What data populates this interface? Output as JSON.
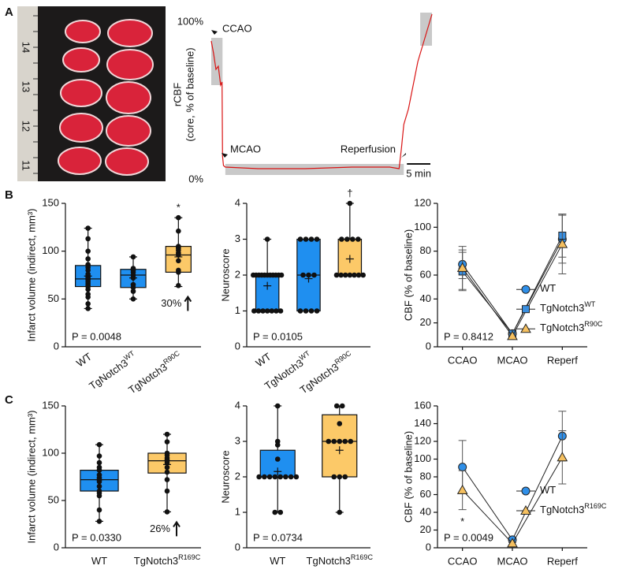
{
  "panels": [
    "A",
    "B",
    "C"
  ],
  "photo": {
    "ruler_labels": [
      "14",
      "13",
      "12",
      "11"
    ]
  },
  "chart_data": [
    {
      "type": "trace",
      "ylabel_lines": [
        "rCBF",
        "(core, % of baseline)"
      ],
      "color": "#d91414",
      "xlim": [
        0,
        47
      ],
      "ylim": [
        0,
        108
      ],
      "yticks": [
        {
          "value": 100,
          "label": "100%"
        },
        {
          "value": 0,
          "label": "0%"
        }
      ],
      "x": [
        0,
        0.5,
        1,
        1.5,
        2,
        2.3,
        2.4,
        2.6,
        3,
        10,
        20,
        30,
        38,
        40,
        40.5,
        41,
        42,
        43,
        44,
        45,
        46,
        46.5,
        47
      ],
      "values": [
        88,
        80,
        70,
        72,
        60,
        62,
        15,
        9,
        8,
        7,
        7,
        8,
        8,
        7,
        20,
        35,
        45,
        60,
        75,
        85,
        95,
        100,
        105
      ],
      "windows": [
        [
          0,
          2.4,
          60,
          90
        ],
        [
          3,
          41,
          3,
          10
        ],
        [
          44.5,
          47,
          85,
          106
        ]
      ],
      "annotations": [
        "CCAO",
        "MCAO",
        "Reperfusion"
      ],
      "scalebar": {
        "value": 5,
        "label": "5 min"
      }
    },
    {
      "type": "box",
      "ylabel": "Infarct volume (indirect, mm³)",
      "ylim": [
        0,
        150
      ],
      "yticks": [
        0,
        50,
        100,
        150
      ],
      "categories": [
        {
          "text": "WT"
        },
        {
          "text": "TgNotch3",
          "sup": "WT"
        },
        {
          "text": "TgNotch3",
          "sup": "R90C"
        }
      ],
      "colors": [
        "#1f8ff0",
        "#1f8ff0",
        "#fcc968"
      ],
      "boxes": [
        {
          "min": 40,
          "q1": 63,
          "median": 71,
          "q3": 85,
          "max": 124,
          "mean": 74,
          "points": [
            124,
            113,
            100,
            92,
            86,
            85,
            83,
            80,
            76,
            74,
            72,
            71,
            70,
            68,
            66,
            64,
            63,
            60,
            55,
            52,
            45,
            40
          ]
        },
        {
          "min": 50,
          "q1": 62,
          "median": 75,
          "q3": 81,
          "max": 94,
          "mean": 72,
          "points": [
            94,
            82,
            81,
            80,
            78,
            75,
            72,
            65,
            62,
            58,
            50
          ]
        },
        {
          "min": 63,
          "q1": 78,
          "median": 96,
          "q3": 105,
          "max": 135,
          "mean": 94,
          "points": [
            135,
            121,
            105,
            104,
            103,
            101,
            98,
            96,
            90,
            80,
            78,
            64
          ]
        }
      ],
      "annotations": [
        {
          "category": 2,
          "text": "*"
        }
      ],
      "increase": {
        "category": 2,
        "text": "30%"
      },
      "p_label": "P = 0.0048"
    },
    {
      "type": "box",
      "ylabel": "Neuroscore",
      "ylim": [
        0,
        4
      ],
      "yticks": [
        0,
        1,
        2,
        3,
        4
      ],
      "categories": [
        {
          "text": "WT"
        },
        {
          "text": "TgNotch3",
          "sup": "WT"
        },
        {
          "text": "TgNotch3",
          "sup": "R90C"
        }
      ],
      "colors": [
        "#1f8ff0",
        "#1f8ff0",
        "#fcc968"
      ],
      "boxes": [
        {
          "min": 1,
          "q1": 1,
          "median": 2,
          "q3": 2,
          "max": 3,
          "mean": 1.7,
          "points": [
            3,
            2,
            2,
            2,
            2,
            2,
            2,
            2,
            2,
            2,
            2,
            2,
            1,
            1,
            1,
            1,
            1,
            1,
            1
          ]
        },
        {
          "min": 1,
          "q1": 1,
          "median": 2,
          "q3": 3,
          "max": 3,
          "mean": 1.9,
          "points": [
            3,
            3,
            3,
            3,
            2,
            2,
            2,
            1,
            1,
            1,
            1
          ]
        },
        {
          "min": 2,
          "q1": 2,
          "median": 2,
          "q3": 3,
          "max": 4,
          "mean": 2.45,
          "points": [
            4,
            3,
            3,
            3,
            3,
            2,
            2,
            2,
            2,
            2,
            2,
            2
          ]
        }
      ],
      "annotations": [
        {
          "category": 2,
          "text": "†"
        }
      ],
      "p_label": "P = 0.0105"
    },
    {
      "type": "line",
      "ylabel": "CBF (% of baseline)",
      "ylim": [
        0,
        120
      ],
      "yticks": [
        0,
        20,
        40,
        60,
        80,
        100,
        120
      ],
      "categories": [
        "CCAO",
        "MCAO",
        "Reperf"
      ],
      "legend": "right",
      "series": [
        {
          "name": "WT",
          "color": "#2f8fe8",
          "marker": "circle",
          "values": [
            69,
            11,
            90
          ],
          "errors": [
            12,
            2,
            20
          ]
        },
        {
          "name": "TgNotch3",
          "sup": "WT",
          "color": "#3a8fe0",
          "marker": "square",
          "values": [
            63,
            11,
            93
          ],
          "errors": [
            16,
            2,
            18
          ]
        },
        {
          "name": "TgNotch3",
          "sup": "R90C",
          "color": "#f5c060",
          "marker": "triangle",
          "values": [
            66,
            9,
            86
          ],
          "errors": [
            18,
            2,
            25
          ]
        }
      ],
      "p_label": "P = 0.8412"
    },
    {
      "type": "box",
      "ylabel": "Infarct volume (indirect, mm³)",
      "ylim": [
        0,
        150
      ],
      "yticks": [
        0,
        50,
        100,
        150
      ],
      "categories": [
        {
          "text": "WT"
        },
        {
          "text": "TgNotch3",
          "sup": "R169C"
        }
      ],
      "colors": [
        "#1f8ff0",
        "#fcc968"
      ],
      "boxes": [
        {
          "min": 28,
          "q1": 60,
          "median": 72,
          "q3": 82,
          "max": 109,
          "mean": 72,
          "points": [
            109,
            97,
            90,
            85,
            82,
            77,
            74,
            72,
            70,
            65,
            60,
            58,
            55,
            40,
            28
          ]
        },
        {
          "min": 38,
          "q1": 79,
          "median": 92,
          "q3": 100,
          "max": 120,
          "mean": 88,
          "points": [
            120,
            112,
            100,
            98,
            95,
            93,
            92,
            90,
            85,
            80,
            72,
            60,
            38
          ]
        }
      ],
      "increase": {
        "category": 1,
        "text": "26%"
      },
      "p_label": "P = 0.0330"
    },
    {
      "type": "box",
      "ylabel": "Neuroscore",
      "ylim": [
        0,
        4
      ],
      "yticks": [
        0,
        1,
        2,
        3,
        4
      ],
      "categories": [
        {
          "text": "WT"
        },
        {
          "text": "TgNotch3",
          "sup": "R169C"
        }
      ],
      "colors": [
        "#1f8ff0",
        "#fcc968"
      ],
      "boxes": [
        {
          "min": 1,
          "q1": 2,
          "median": 2,
          "q3": 2.75,
          "max": 4,
          "mean": 2.15,
          "points": [
            4,
            3,
            2.9,
            2.5,
            2,
            2,
            2,
            2,
            2,
            2,
            2,
            2,
            1,
            1
          ]
        },
        {
          "min": 1,
          "q1": 2,
          "median": 3,
          "q3": 3.75,
          "max": 4,
          "mean": 2.75,
          "points": [
            4,
            4,
            3.5,
            3,
            3,
            3,
            3,
            3,
            2,
            2,
            2,
            1
          ]
        }
      ],
      "p_label": "P = 0.0734"
    },
    {
      "type": "line",
      "ylabel": "CBF (% of baseline)",
      "ylim": [
        0,
        160
      ],
      "yticks": [
        0,
        20,
        40,
        60,
        80,
        100,
        120,
        140,
        160
      ],
      "categories": [
        "CCAO",
        "MCAO",
        "Reperf"
      ],
      "legend": "right",
      "series": [
        {
          "name": "WT",
          "color": "#2f8fe8",
          "marker": "circle",
          "values": [
            91,
            9,
            126
          ],
          "errors": [
            30,
            3,
            28
          ]
        },
        {
          "name": "TgNotch3",
          "sup": "R169C",
          "color": "#f5c060",
          "marker": "triangle",
          "values": [
            65,
            5,
            102
          ],
          "errors": [
            22,
            2,
            30
          ]
        }
      ],
      "annotations": [
        {
          "category": 0,
          "text": "*"
        }
      ],
      "p_label": "P = 0.0049"
    }
  ]
}
